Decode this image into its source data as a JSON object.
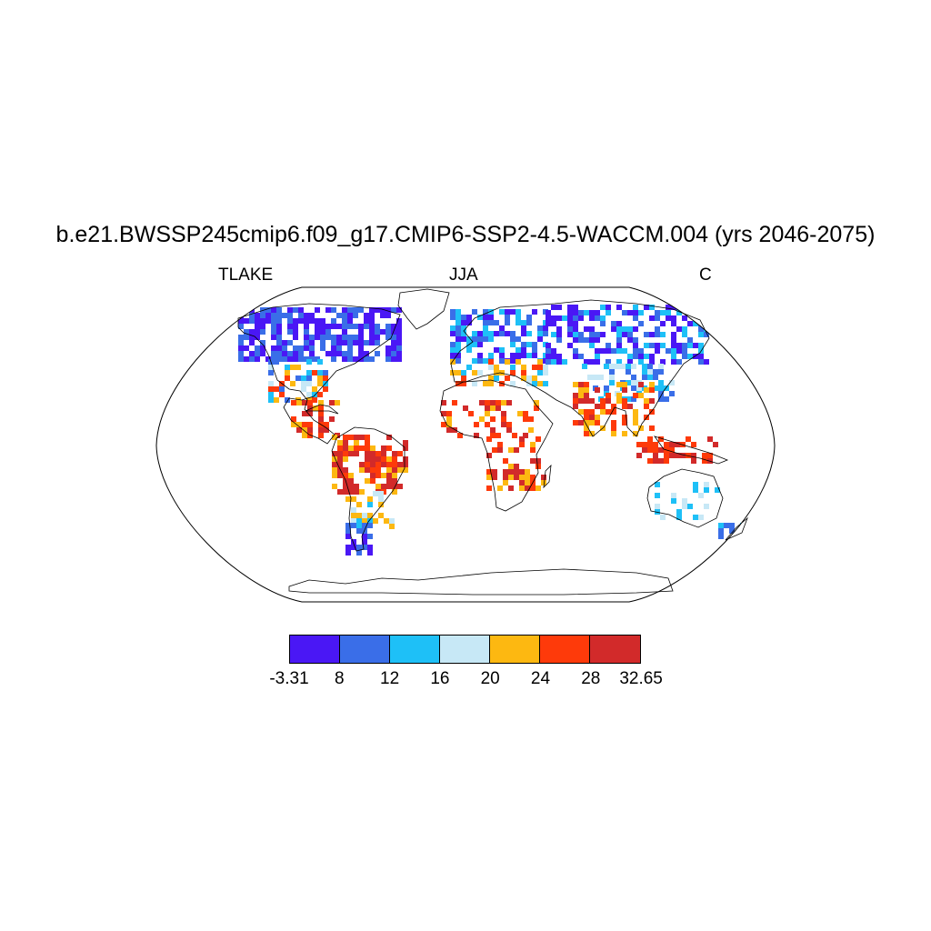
{
  "title": "b.e21.BWSSP245cmip6.f09_g17.CMIP6-SSP2-4.5-WACCM.004 (yrs 2046-2075)",
  "left_label": "TLAKE",
  "center_label": "JJA",
  "right_label": "C",
  "colorbar": {
    "colors": [
      "#4a17f5",
      "#3a6ee8",
      "#1ec0f7",
      "#c7e8f6",
      "#fdb811",
      "#fe3a0a",
      "#d22a2a"
    ],
    "tick_labels": [
      "-3.31",
      "8",
      "12",
      "16",
      "20",
      "24",
      "28",
      "32.65"
    ]
  },
  "map": {
    "projection": "Robinson",
    "variable": "TLAKE",
    "season": "JJA",
    "units": "C"
  }
}
